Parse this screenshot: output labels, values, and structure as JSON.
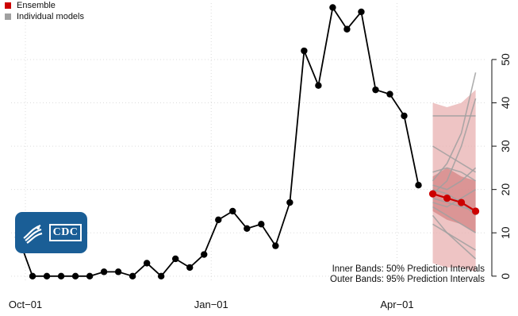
{
  "colors": {
    "ensemble": "#cc0000",
    "individual": "#a0a0a0",
    "observed": "#000000",
    "outer_band": "#e8b0b0",
    "inner_band": "#d48585",
    "logo_bg": "#1a5e96"
  },
  "legend": [
    {
      "label": "Ensemble",
      "color": "#cc0000"
    },
    {
      "label": "Individual models",
      "color": "#a0a0a0"
    }
  ],
  "band_notes": {
    "inner": "Inner Bands: 50% Prediction Intervals",
    "outer": "Outer Bands: 95% Prediction Intervals"
  },
  "logo": {
    "text": "CDC",
    "icon": "hhs-eagle-icon"
  },
  "chart_data": {
    "type": "line",
    "x_axis": {
      "type": "time",
      "ticks": [
        "Oct−01",
        "Jan−01",
        "Apr−01"
      ],
      "tick_positions": [
        -0.5,
        12.5,
        25.5
      ],
      "range": [
        -1.5,
        31.8
      ]
    },
    "y_axis": {
      "position": "right",
      "range": [
        -1.5,
        63
      ],
      "ticks": [
        0,
        10,
        20,
        30,
        40,
        50
      ]
    },
    "grid": true,
    "legend_position": "top-left",
    "observed": {
      "name": "",
      "x": [
        -1,
        0,
        1,
        2,
        3,
        4,
        5,
        6,
        7,
        8,
        9,
        10,
        11,
        12,
        13,
        14,
        15,
        16,
        17,
        18,
        19,
        20,
        21,
        22,
        23,
        24,
        25,
        26,
        27
      ],
      "y": [
        9,
        0,
        0,
        0,
        0,
        0,
        1,
        1,
        0,
        3,
        0,
        4,
        2,
        5,
        13,
        15,
        11,
        12,
        7,
        17,
        52,
        44,
        62,
        57,
        61,
        43,
        42,
        37,
        21
      ]
    },
    "ensemble": {
      "name": "Ensemble",
      "x": [
        28,
        29,
        30,
        31
      ],
      "y": [
        19,
        18,
        17,
        15
      ],
      "inner_50": {
        "lower": [
          15,
          13,
          12,
          10
        ],
        "upper": [
          23,
          25,
          23,
          22
        ]
      },
      "outer_95": {
        "lower": [
          3,
          2,
          2,
          1
        ],
        "upper": [
          40,
          39,
          40,
          43
        ]
      }
    },
    "individual_models": {
      "name": "Individual models",
      "x": [
        28,
        29,
        30,
        31
      ],
      "series": [
        [
          18,
          17,
          16,
          15
        ],
        [
          20,
          19,
          17,
          14
        ],
        [
          16,
          14,
          12,
          10
        ],
        [
          22,
          26,
          33,
          47
        ],
        [
          19,
          22,
          30,
          41
        ],
        [
          14,
          10,
          8,
          6
        ],
        [
          37,
          37,
          37,
          37
        ],
        [
          30,
          28,
          26,
          24
        ],
        [
          17,
          16,
          18,
          20
        ],
        [
          12,
          10,
          7,
          4
        ],
        [
          24,
          25,
          24,
          22
        ],
        [
          21,
          20,
          22,
          25
        ]
      ]
    }
  }
}
